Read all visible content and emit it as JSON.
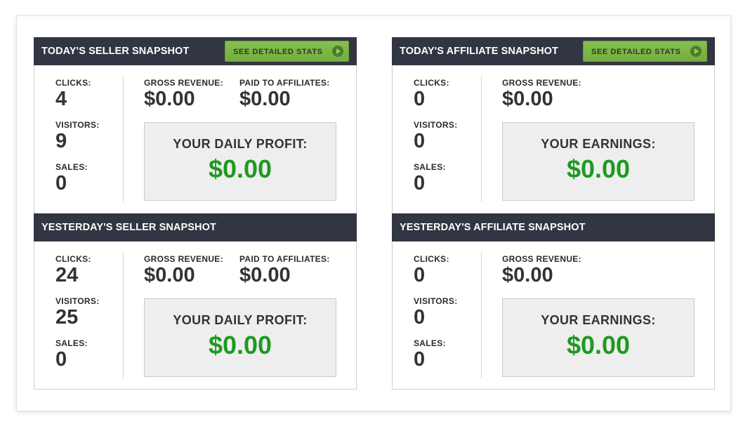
{
  "colors": {
    "header": "#323542",
    "button": "#7ab648",
    "profit": "#1e9a1e"
  },
  "columns": [
    {
      "sections": [
        {
          "title": "TODAY'S SELLER SNAPSHOT",
          "button": "SEE DETAILED STATS",
          "stats": [
            {
              "label": "CLICKS:",
              "value": "4"
            },
            {
              "label": "VISITORS:",
              "value": "9"
            },
            {
              "label": "SALES:",
              "value": "0"
            }
          ],
          "money": [
            {
              "label": "GROSS REVENUE:",
              "value": "$0.00"
            },
            {
              "label": "PAID TO AFFILIATES:",
              "value": "$0.00"
            }
          ],
          "box": {
            "label": "YOUR DAILY PROFIT:",
            "value": "$0.00"
          }
        },
        {
          "title": "YESTERDAY'S SELLER SNAPSHOT",
          "stats": [
            {
              "label": "CLICKS:",
              "value": "24"
            },
            {
              "label": "VISITORS:",
              "value": "25"
            },
            {
              "label": "SALES:",
              "value": "0"
            }
          ],
          "money": [
            {
              "label": "GROSS REVENUE:",
              "value": "$0.00"
            },
            {
              "label": "PAID TO AFFILIATES:",
              "value": "$0.00"
            }
          ],
          "box": {
            "label": "YOUR DAILY PROFIT:",
            "value": "$0.00"
          }
        }
      ]
    },
    {
      "sections": [
        {
          "title": "TODAY'S AFFILIATE SNAPSHOT",
          "button": "SEE DETAILED STATS",
          "stats": [
            {
              "label": "CLICKS:",
              "value": "0"
            },
            {
              "label": "VISITORS:",
              "value": "0"
            },
            {
              "label": "SALES:",
              "value": "0"
            }
          ],
          "money": [
            {
              "label": "GROSS REVENUE:",
              "value": "$0.00"
            }
          ],
          "box": {
            "label": "YOUR EARNINGS:",
            "value": "$0.00"
          }
        },
        {
          "title": "YESTERDAY'S AFFILIATE SNAPSHOT",
          "stats": [
            {
              "label": "CLICKS:",
              "value": "0"
            },
            {
              "label": "VISITORS:",
              "value": "0"
            },
            {
              "label": "SALES:",
              "value": "0"
            }
          ],
          "money": [
            {
              "label": "GROSS REVENUE:",
              "value": "$0.00"
            }
          ],
          "box": {
            "label": "YOUR EARNINGS:",
            "value": "$0.00"
          }
        }
      ]
    }
  ]
}
